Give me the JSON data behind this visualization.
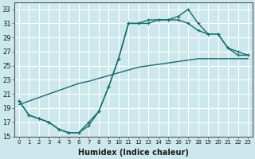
{
  "xlabel": "Humidex (Indice chaleur)",
  "ylabel": "",
  "bg_color": "#cce8ec",
  "grid_color": "#ffffff",
  "line_color": "#1a6b6b",
  "x_values": [
    0,
    1,
    2,
    3,
    4,
    5,
    6,
    7,
    8,
    9,
    10,
    11,
    12,
    13,
    14,
    15,
    16,
    17,
    18,
    19,
    20,
    21,
    22,
    23
  ],
  "line_straight": [
    19.5,
    20.0,
    20.5,
    21.0,
    21.5,
    22.0,
    22.5,
    22.8,
    23.2,
    23.6,
    24.0,
    24.4,
    24.8,
    25.0,
    25.2,
    25.4,
    25.6,
    25.8,
    26.0,
    26.0,
    26.0,
    26.0,
    26.0,
    26.0
  ],
  "line_mid": [
    20,
    18,
    17.5,
    17,
    16,
    15.5,
    15.5,
    16.5,
    18.5,
    22,
    26,
    31,
    31,
    31,
    31.5,
    31.5,
    31.5,
    31,
    30,
    29.5,
    29.5,
    27.5,
    27,
    26.5
  ],
  "line_top": [
    20,
    18,
    17.5,
    17,
    16,
    15.5,
    15.5,
    17,
    18.5,
    22,
    26,
    31,
    31,
    31.5,
    31.5,
    31.5,
    32,
    33,
    31,
    29.5,
    29.5,
    27.5,
    26.5,
    26.5
  ],
  "ylim": [
    15,
    34
  ],
  "xlim": [
    -0.5,
    23.5
  ],
  "yticks": [
    15,
    17,
    19,
    21,
    23,
    25,
    27,
    29,
    31,
    33
  ],
  "xticks": [
    0,
    1,
    2,
    3,
    4,
    5,
    6,
    7,
    8,
    9,
    10,
    11,
    12,
    13,
    14,
    15,
    16,
    17,
    18,
    19,
    20,
    21,
    22,
    23
  ]
}
